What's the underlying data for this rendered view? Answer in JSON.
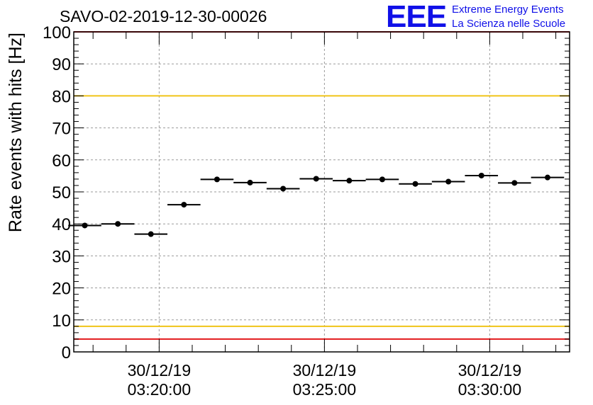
{
  "chart_data": {
    "type": "scatter",
    "title": "SAVO-02-2019-12-30-00026",
    "ylabel": "Rate events with hits [Hz]",
    "xlabel": "",
    "ylim": [
      0,
      100
    ],
    "yticks": [
      0,
      10,
      20,
      30,
      40,
      50,
      60,
      70,
      80,
      90,
      100
    ],
    "xlim": [
      "03:17:25",
      "03:32:25"
    ],
    "xticks": [
      {
        "date": "30/12/19",
        "time": "03:20:00"
      },
      {
        "date": "30/12/19",
        "time": "03:25:00"
      },
      {
        "date": "30/12/19",
        "time": "03:30:00"
      }
    ],
    "grid": true,
    "bin_width_seconds": 60,
    "x": [
      "03:17:45",
      "03:18:45",
      "03:19:45",
      "03:20:45",
      "03:21:45",
      "03:22:45",
      "03:23:45",
      "03:24:45",
      "03:25:45",
      "03:26:45",
      "03:27:45",
      "03:28:45",
      "03:29:45",
      "03:30:45",
      "03:31:45"
    ],
    "values": [
      39.5,
      40.0,
      36.8,
      46.0,
      53.9,
      52.9,
      51.0,
      54.1,
      53.5,
      53.9,
      52.5,
      53.2,
      55.1,
      52.8,
      54.5
    ],
    "reference_lines": [
      {
        "value": 100,
        "color": "#e31a1c"
      },
      {
        "value": 80,
        "color": "#f0c419"
      },
      {
        "value": 8,
        "color": "#f0c419"
      },
      {
        "value": 4,
        "color": "#e31a1c"
      }
    ],
    "marker_color": "#000000"
  },
  "logo": {
    "mark": "EEE",
    "line1": "Extreme Energy Events",
    "line2": "La Scienza nelle Scuole",
    "color": "#1010e8"
  }
}
